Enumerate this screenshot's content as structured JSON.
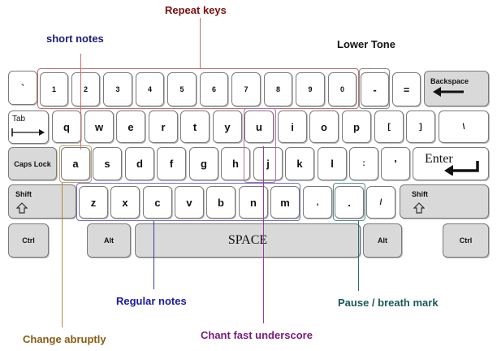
{
  "annotations": {
    "repeat_keys": {
      "text": "Repeat keys",
      "color": "#7b1010"
    },
    "short_notes": {
      "text": "short notes",
      "color": "#1a1a7a"
    },
    "lower_tone": {
      "text": "Lower Tone",
      "color": "#111111"
    },
    "regular_notes": {
      "text": "Regular notes",
      "color": "#1a1aa0"
    },
    "change_abruptly": {
      "text": "Change abruptly",
      "color": "#8a5a10"
    },
    "chant_fast_underscore": {
      "text": "Chant fast underscore",
      "color": "#7a1a7a"
    },
    "pause_breath_mark": {
      "text": "Pause / breath mark",
      "color": "#1a5a5a"
    }
  },
  "keyboard": {
    "row1": [
      "`",
      "1",
      "2",
      "3",
      "4",
      "5",
      "6",
      "7",
      "8",
      "9",
      "0",
      "-",
      "=",
      "Backspace"
    ],
    "row2": [
      "Tab",
      "q",
      "w",
      "e",
      "r",
      "t",
      "y",
      "u",
      "i",
      "o",
      "p",
      "[",
      "]",
      "\\"
    ],
    "row3": [
      "Caps Lock",
      "a",
      "s",
      "d",
      "f",
      "g",
      "h",
      "j",
      "k",
      "l",
      ":",
      "'",
      "Enter"
    ],
    "row4": [
      "Shift",
      "z",
      "x",
      "c",
      "v",
      "b",
      "n",
      "m",
      ",",
      ".",
      "/",
      "Shift"
    ],
    "row5": [
      "Ctrl",
      "Alt",
      "SPACE",
      "Alt",
      "Ctrl"
    ]
  },
  "colors": {
    "key_face": "#ffffff",
    "key_gray": "#d9d9d9",
    "key_border": "#7a7a7a"
  }
}
